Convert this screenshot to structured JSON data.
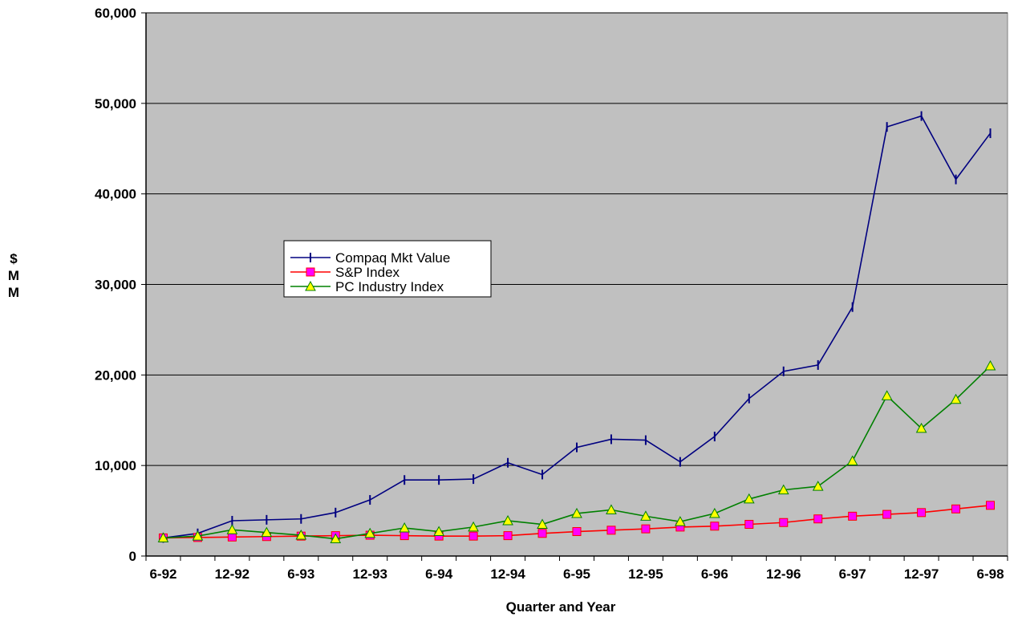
{
  "chart_data": {
    "type": "line",
    "title": "",
    "xlabel": "Quarter and Year",
    "ylabel": [
      "$",
      "M",
      "M"
    ],
    "ylim": [
      0,
      60000
    ],
    "yticks": [
      0,
      10000,
      20000,
      30000,
      40000,
      50000,
      60000
    ],
    "ytick_labels": [
      "0",
      "10,000",
      "20,000",
      "30,000",
      "40,000",
      "50,000",
      "60,000"
    ],
    "grid": true,
    "legend_position": "center-left",
    "quarters": [
      "6-92",
      "9-92",
      "12-92",
      "3-93",
      "6-93",
      "9-93",
      "12-93",
      "3-94",
      "6-94",
      "9-94",
      "12-94",
      "3-95",
      "6-95",
      "9-95",
      "12-95",
      "3-96",
      "6-96",
      "9-96",
      "12-96",
      "3-97",
      "6-97",
      "9-97",
      "12-97",
      "3-98",
      "6-98"
    ],
    "xtick_labels": [
      {
        "index": 0,
        "label": "6-92"
      },
      {
        "index": 2,
        "label": "12-92"
      },
      {
        "index": 4,
        "label": "6-93"
      },
      {
        "index": 6,
        "label": "12-93"
      },
      {
        "index": 8,
        "label": "6-94"
      },
      {
        "index": 10,
        "label": "12-94"
      },
      {
        "index": 12,
        "label": "6-95"
      },
      {
        "index": 14,
        "label": "12-95"
      },
      {
        "index": 16,
        "label": "6-96"
      },
      {
        "index": 18,
        "label": "12-96"
      },
      {
        "index": 20,
        "label": "6-97"
      },
      {
        "index": 22,
        "label": "12-97"
      },
      {
        "index": 24,
        "label": "6-98"
      }
    ],
    "series": [
      {
        "name": "Compaq Mkt Value",
        "color": "#000080",
        "marker": "tick",
        "values": [
          2000,
          2500,
          3900,
          4000,
          4100,
          4800,
          6200,
          8400,
          8400,
          8500,
          10300,
          9000,
          12000,
          12900,
          12800,
          10400,
          13200,
          17400,
          20400,
          21100,
          27500,
          47400,
          48600,
          41600,
          46700
        ]
      },
      {
        "name": "S&P Index",
        "color": "#ff0000",
        "marker": "square",
        "marker_fill": "#ff00ff",
        "values": [
          2000,
          2050,
          2100,
          2150,
          2200,
          2250,
          2300,
          2250,
          2200,
          2200,
          2250,
          2500,
          2700,
          2850,
          3000,
          3200,
          3300,
          3500,
          3700,
          4100,
          4400,
          4600,
          4800,
          5200,
          5600
        ]
      },
      {
        "name": "PC Industry Index",
        "color": "#008000",
        "marker": "triangle",
        "marker_fill": "#ffff00",
        "values": [
          2000,
          2200,
          2900,
          2600,
          2300,
          1900,
          2500,
          3100,
          2700,
          3200,
          3900,
          3500,
          4700,
          5100,
          4400,
          3800,
          4700,
          6300,
          7300,
          7700,
          10500,
          17700,
          14100,
          17300,
          21000
        ]
      }
    ]
  }
}
